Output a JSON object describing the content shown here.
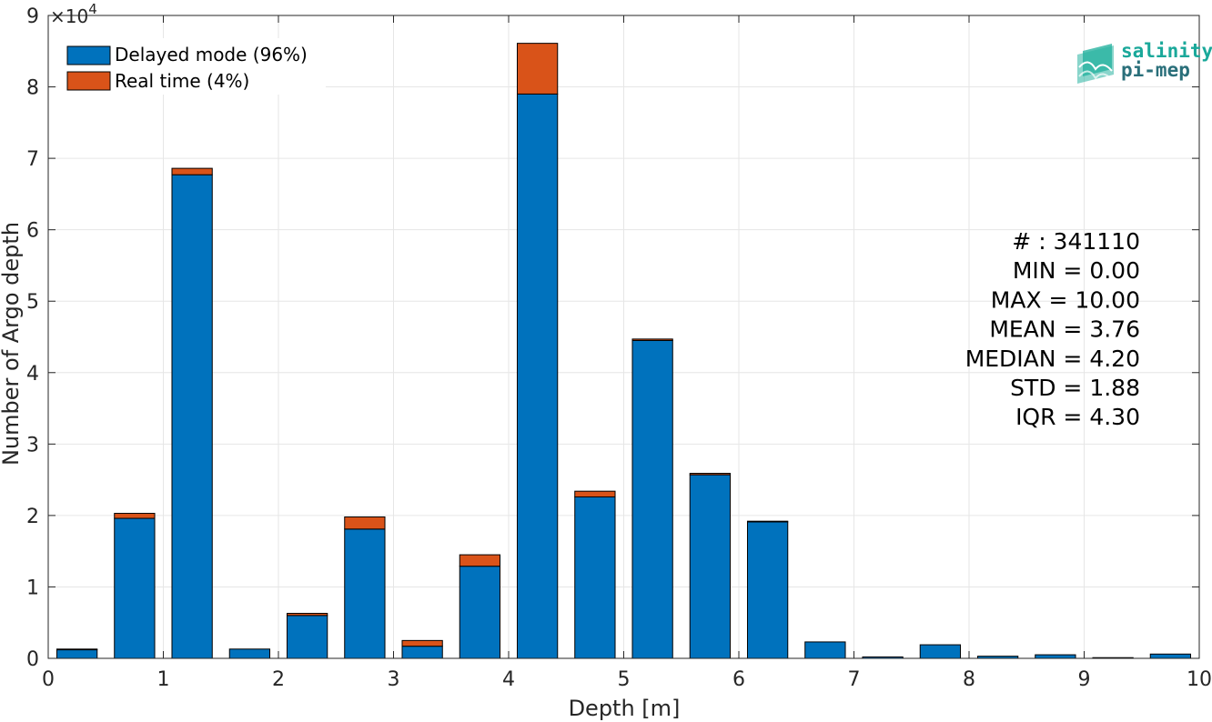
{
  "chart_data": {
    "type": "bar",
    "stacked": true,
    "xlabel": "Depth [m]",
    "ylabel": "Number of Argo depth",
    "xlim": [
      0,
      10
    ],
    "ylim": [
      0,
      90000
    ],
    "y_exponent_label": "×10",
    "y_exponent_power": "4",
    "x_ticks": [
      "0",
      "1",
      "2",
      "3",
      "4",
      "5",
      "6",
      "7",
      "8",
      "9",
      "10"
    ],
    "y_ticks": [
      "0",
      "1",
      "2",
      "3",
      "4",
      "5",
      "6",
      "7",
      "8",
      "9"
    ],
    "grid": true,
    "legend_position": "top-left",
    "bin_width": 0.5,
    "x": [
      0.25,
      0.75,
      1.25,
      1.75,
      2.25,
      2.75,
      3.25,
      3.75,
      4.25,
      4.75,
      5.25,
      5.75,
      6.25,
      6.75,
      7.25,
      7.75,
      8.25,
      8.75,
      9.25,
      9.75
    ],
    "series": [
      {
        "name": "Delayed mode (96%)",
        "color": "#0072BD",
        "values": [
          1200,
          19600,
          67700,
          1300,
          6000,
          18100,
          1700,
          12900,
          79000,
          22600,
          44500,
          25700,
          19100,
          2300,
          200,
          1900,
          300,
          500,
          100,
          600
        ]
      },
      {
        "name": "Real time (4%)",
        "color": "#D95319",
        "values": [
          100,
          700,
          900,
          0,
          300,
          1700,
          800,
          1600,
          7100,
          800,
          200,
          200,
          100,
          0,
          0,
          0,
          0,
          0,
          0,
          0
        ]
      }
    ],
    "annotations": [
      "# : 341110",
      "MIN = 0.00",
      "MAX =  10.00",
      "MEAN = 3.76",
      "MEDIAN = 4.20",
      "STD = 1.88",
      "IQR = 4.30"
    ]
  },
  "logo": {
    "line1": "salinity",
    "line2": "pi-mep",
    "colors": {
      "line1": "#1aa89a",
      "line2": "#2a6f7a",
      "mark": "#28b3a0"
    }
  }
}
